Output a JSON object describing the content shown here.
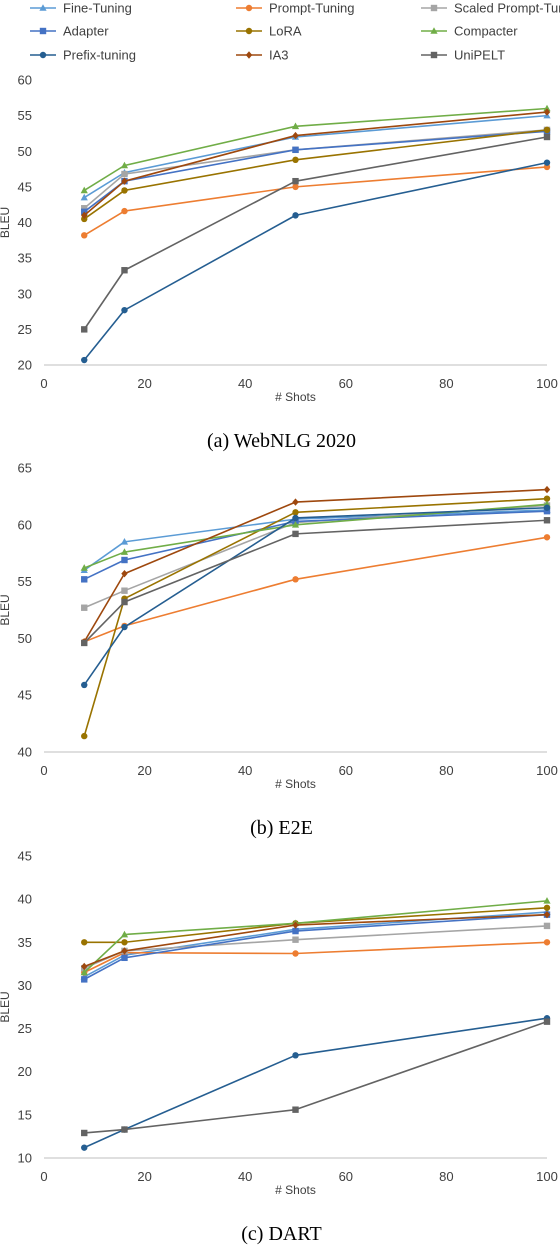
{
  "legend": [
    {
      "name": "Fine-Tuning",
      "color": "#5b9bd5",
      "marker": "triangle"
    },
    {
      "name": "Prompt-Tuning",
      "color": "#ed7d31",
      "marker": "circle"
    },
    {
      "name": "Scaled Prompt-Tuning",
      "color": "#a5a5a5",
      "marker": "square"
    },
    {
      "name": "Adapter",
      "color": "#4472c4",
      "marker": "square"
    },
    {
      "name": "LoRA",
      "color": "#997300",
      "marker": "circle"
    },
    {
      "name": "Compacter",
      "color": "#70ad47",
      "marker": "triangle"
    },
    {
      "name": "Prefix-tuning",
      "color": "#255e91",
      "marker": "circle"
    },
    {
      "name": "IA3",
      "color": "#9e480e",
      "marker": "diamond"
    },
    {
      "name": "UniPELT",
      "color": "#636363",
      "marker": "square"
    }
  ],
  "chart_data": [
    {
      "type": "line",
      "caption": "(a) WebNLG 2020",
      "xlabel": "# Shots",
      "ylabel": "BLEU",
      "xlim": [
        0,
        100
      ],
      "ylim": [
        20,
        60
      ],
      "xticks": [
        0,
        20,
        40,
        60,
        80,
        100
      ],
      "yticks": [
        20,
        25,
        30,
        35,
        40,
        45,
        50,
        55,
        60
      ],
      "grid": false,
      "x": [
        8,
        16,
        50,
        100
      ],
      "series": [
        {
          "name": "Fine-Tuning",
          "values": [
            43.5,
            47.0,
            52.0,
            55.0
          ]
        },
        {
          "name": "Prompt-Tuning",
          "values": [
            38.2,
            41.6,
            45.0,
            47.8
          ]
        },
        {
          "name": "Scaled Prompt-Tuning",
          "values": [
            42.0,
            46.8,
            50.2,
            53.0
          ]
        },
        {
          "name": "Adapter",
          "values": [
            41.5,
            45.8,
            50.2,
            52.8
          ]
        },
        {
          "name": "LoRA",
          "values": [
            40.5,
            44.5,
            48.8,
            53.0
          ]
        },
        {
          "name": "Compacter",
          "values": [
            44.5,
            48.0,
            53.5,
            56.0
          ]
        },
        {
          "name": "Prefix-tuning",
          "values": [
            20.7,
            27.7,
            41.0,
            48.4
          ]
        },
        {
          "name": "IA3",
          "values": [
            41.0,
            45.8,
            52.2,
            55.5
          ]
        },
        {
          "name": "UniPELT",
          "values": [
            25.0,
            33.3,
            45.8,
            52.0
          ]
        }
      ]
    },
    {
      "type": "line",
      "caption": "(b) E2E",
      "xlabel": "# Shots",
      "ylabel": "BLEU",
      "xlim": [
        0,
        100
      ],
      "ylim": [
        40,
        65
      ],
      "xticks": [
        0,
        20,
        40,
        60,
        80,
        100
      ],
      "yticks": [
        40,
        45,
        50,
        55,
        60,
        65
      ],
      "grid": false,
      "x": [
        8,
        16,
        50,
        100
      ],
      "series": [
        {
          "name": "Fine-Tuning",
          "values": [
            56.0,
            58.5,
            60.5,
            61.3
          ]
        },
        {
          "name": "Prompt-Tuning",
          "values": [
            49.7,
            51.1,
            55.2,
            58.9
          ]
        },
        {
          "name": "Scaled Prompt-Tuning",
          "values": [
            52.7,
            54.2,
            60.2,
            61.7
          ]
        },
        {
          "name": "Adapter",
          "values": [
            55.2,
            56.9,
            60.3,
            61.2
          ]
        },
        {
          "name": "LoRA",
          "values": [
            41.4,
            53.5,
            61.1,
            62.3
          ]
        },
        {
          "name": "Compacter",
          "values": [
            56.2,
            57.6,
            60.0,
            61.8
          ]
        },
        {
          "name": "Prefix-tuning",
          "values": [
            45.9,
            51.0,
            60.6,
            61.5
          ]
        },
        {
          "name": "IA3",
          "values": [
            49.7,
            55.7,
            62.0,
            63.1
          ]
        },
        {
          "name": "UniPELT",
          "values": [
            49.6,
            53.2,
            59.2,
            60.4
          ]
        }
      ]
    },
    {
      "type": "line",
      "caption": "(c) DART",
      "xlabel": "# Shots",
      "ylabel": "BLEU",
      "xlim": [
        0,
        100
      ],
      "ylim": [
        10,
        45
      ],
      "xticks": [
        0,
        20,
        40,
        60,
        80,
        100
      ],
      "yticks": [
        10,
        15,
        20,
        25,
        30,
        35,
        40,
        45
      ],
      "grid": false,
      "x": [
        8,
        16,
        50,
        100
      ],
      "series": [
        {
          "name": "Fine-Tuning",
          "values": [
            31.0,
            33.5,
            36.5,
            38.5
          ]
        },
        {
          "name": "Prompt-Tuning",
          "values": [
            31.5,
            33.8,
            33.7,
            35.0
          ]
        },
        {
          "name": "Scaled Prompt-Tuning",
          "values": [
            32.0,
            34.0,
            35.3,
            36.9
          ]
        },
        {
          "name": "Adapter",
          "values": [
            30.7,
            33.2,
            36.3,
            38.2
          ]
        },
        {
          "name": "LoRA",
          "values": [
            35.0,
            35.0,
            37.2,
            39.0
          ]
        },
        {
          "name": "Compacter",
          "values": [
            31.5,
            35.9,
            37.2,
            39.8
          ]
        },
        {
          "name": "Prefix-tuning",
          "values": [
            11.2,
            13.3,
            21.9,
            26.2
          ]
        },
        {
          "name": "IA3",
          "values": [
            32.2,
            34.0,
            37.0,
            38.2
          ]
        },
        {
          "name": "UniPELT",
          "values": [
            12.9,
            13.3,
            15.6,
            25.8
          ]
        }
      ]
    }
  ]
}
